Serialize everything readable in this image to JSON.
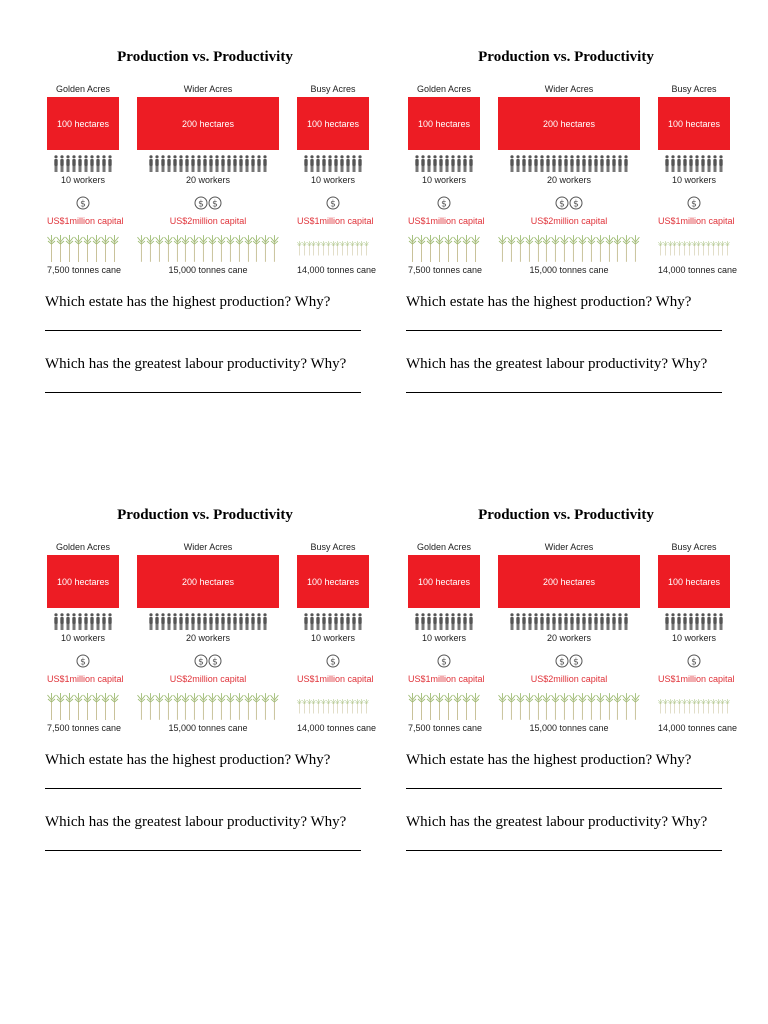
{
  "title": "Production vs. Productivity",
  "estates": [
    {
      "name": "Golden Acres",
      "area": "100 hectares",
      "workers": 10,
      "workers_label": "10 workers",
      "capital_coins": 1,
      "capital_label": "US$1million capital",
      "cane_plants": 8,
      "cane_label": "7,500 tonnes cane"
    },
    {
      "name": "Wider Acres",
      "area": "200 hectares",
      "workers": 20,
      "workers_label": "20 workers",
      "capital_coins": 2,
      "capital_label": "US$2million capital",
      "cane_plants": 16,
      "cane_label": "15,000 tonnes cane"
    },
    {
      "name": "Busy Acres",
      "area": "100 hectares",
      "workers": 10,
      "workers_label": "10 workers",
      "capital_coins": 1,
      "capital_label": "US$1million capital",
      "cane_plants": 15,
      "cane_label": "14,000 tonnes cane"
    }
  ],
  "questions": [
    "Which estate has the highest production? Why?",
    "Which has the greatest labour  productivity? Why?"
  ],
  "colors": {
    "field": "#ed1c24",
    "capital_text": "#e0333a",
    "worker": "#555555",
    "cane": "#9dbb72"
  },
  "icons": {
    "worker": "person-icon",
    "capital": "dollar-coin-icon",
    "cane": "sugar-cane-icon"
  }
}
